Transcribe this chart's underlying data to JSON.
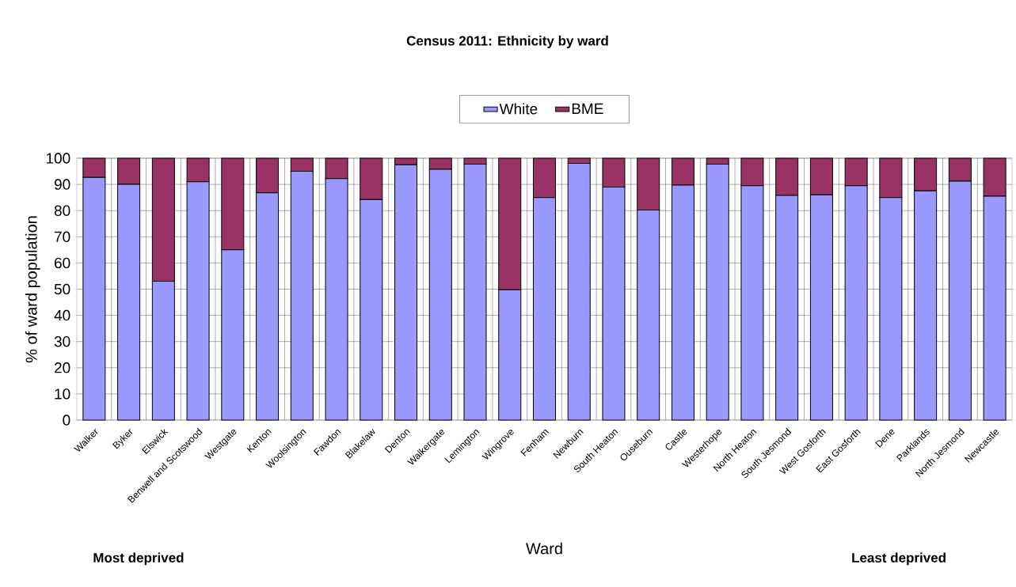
{
  "chart_data": {
    "type": "bar",
    "title": "Census 2011: Ethnicity by ward",
    "xlabel": "Ward",
    "ylabel": "% of ward population",
    "categories": [
      "Walker",
      "Byker",
      "Elswick",
      "Benwell and Scotswood",
      "Westgate",
      "Kenton",
      "Woolsington",
      "Fawdon",
      "Blakelaw",
      "Denton",
      "Walkergate",
      "Lemington",
      "Wingrove",
      "Fenham",
      "Newburn",
      "South Heaton",
      "Ouseburn",
      "Castle",
      "Westerhope",
      "North Heaton",
      "South Jesmond",
      "West Gosforth",
      "East Gosforth",
      "Dene",
      "Parklands",
      "North Jesmond",
      "Newcastle"
    ],
    "series": [
      {
        "name": "White",
        "color": "#9999ff",
        "values": [
          92.7,
          90,
          53,
          91,
          65,
          86.8,
          95,
          92.2,
          84.2,
          97.5,
          95.8,
          97.7,
          49.8,
          85,
          98,
          89,
          80.2,
          89.7,
          97.7,
          89.5,
          85.8,
          86,
          89.5,
          85,
          87.5,
          91.2,
          85.5
        ]
      },
      {
        "name": "BME",
        "color": "#993366",
        "values": [
          7.3,
          10,
          47,
          9,
          35,
          13.2,
          5,
          7.8,
          15.8,
          2.5,
          4.2,
          2.3,
          50.2,
          15,
          2,
          11,
          19.8,
          10.3,
          2.3,
          10.5,
          14.2,
          14,
          10.5,
          15,
          12.5,
          8.8,
          14.5
        ]
      }
    ],
    "stacked": true,
    "ylim": [
      0,
      100
    ],
    "yticks": [
      0,
      10,
      20,
      30,
      40,
      50,
      60,
      70,
      80,
      90,
      100
    ],
    "grid": true,
    "legend": "top",
    "annotations": [
      "Most deprived",
      "Least deprived"
    ]
  }
}
